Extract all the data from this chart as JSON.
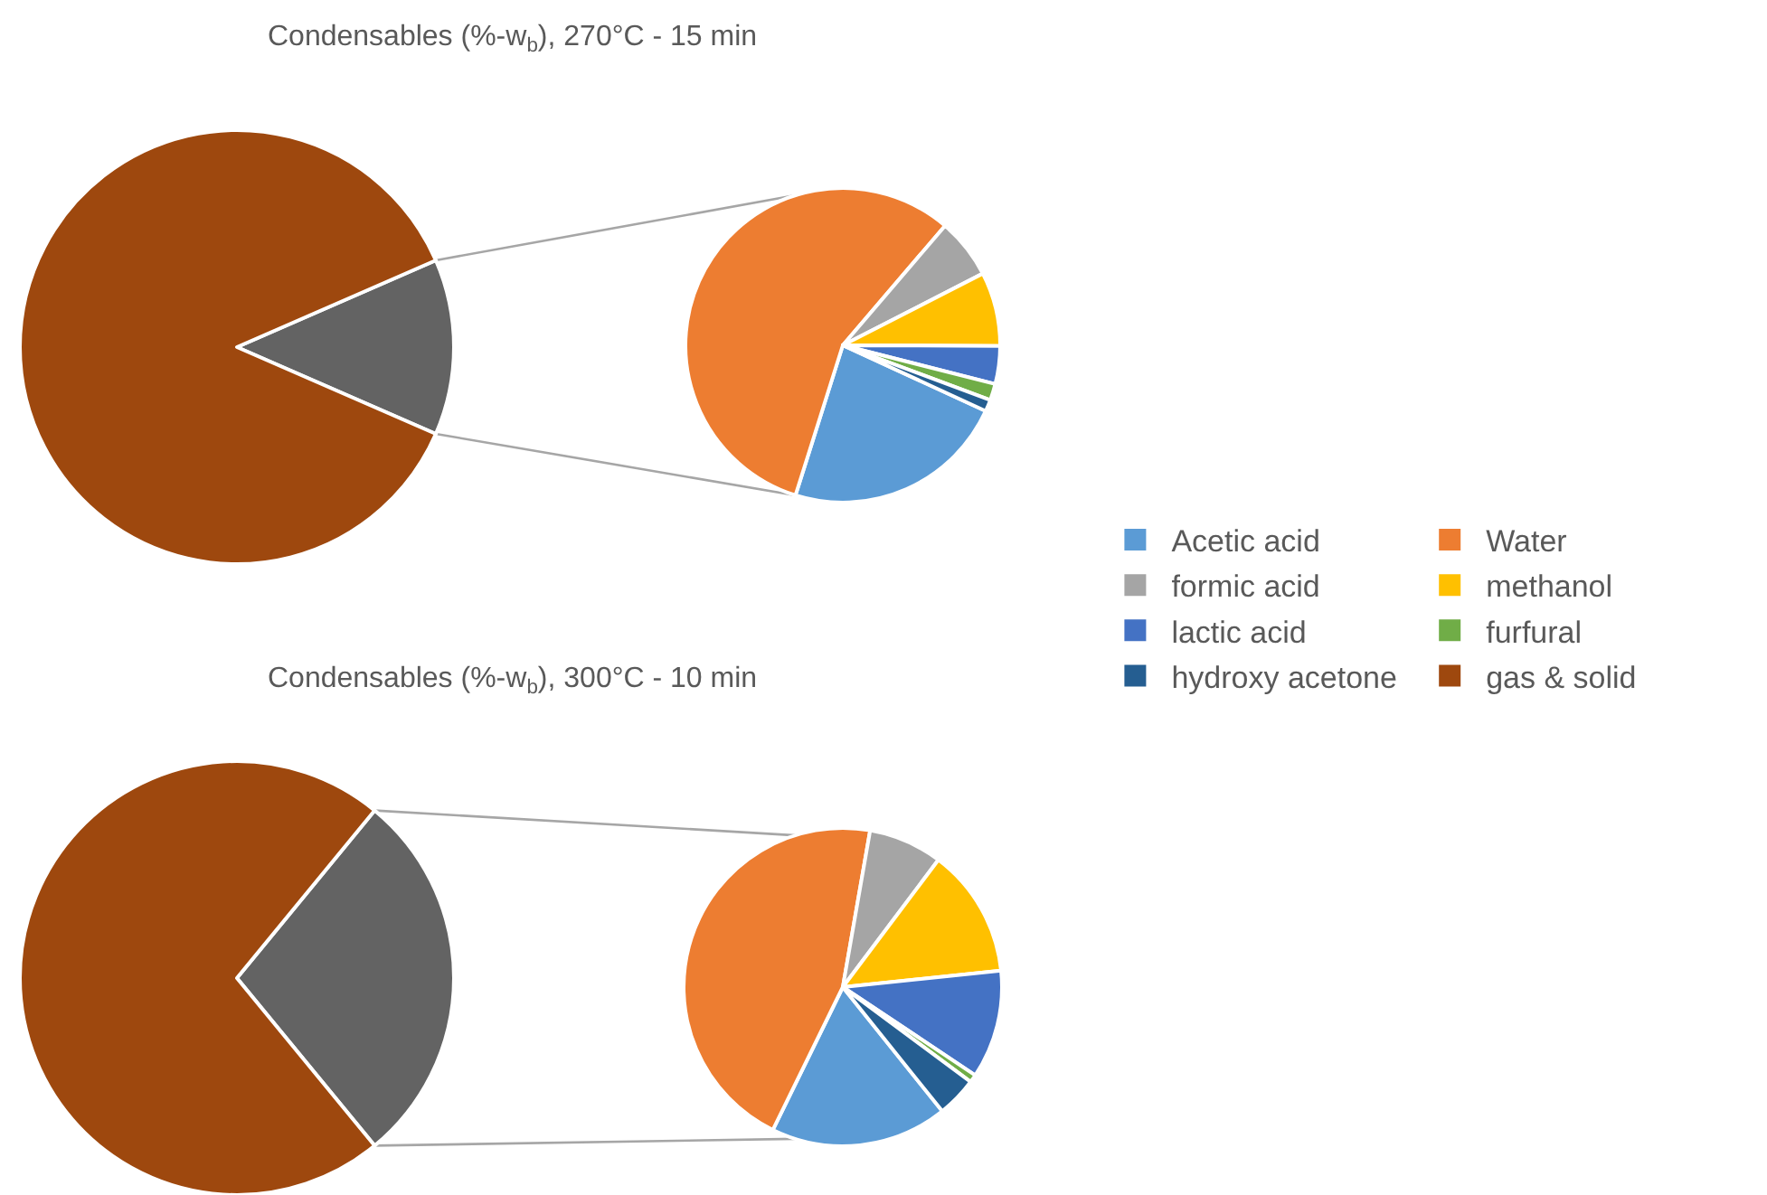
{
  "chart_data": [
    {
      "type": "pie",
      "title": "Condensables (%-w$_{b}$), 270°C - 15 min",
      "categories": [
        null,
        "gas & solid"
      ],
      "values": [
        13.1,
        86.9
      ],
      "colors": [
        "#636363",
        "#9e480e"
      ],
      "legend": "right"
    },
    {
      "type": "pie",
      "categories": [
        "Acetic acid",
        "Water",
        "formic acid",
        "methanol",
        "lactic acid",
        "furfural",
        "hydroxy acetone"
      ],
      "values": [
        23.0,
        56.4,
        6.2,
        7.6,
        3.9,
        1.7,
        1.2
      ],
      "colors": [
        "#5b9bd5",
        "#ed7d31",
        "#a5a5a5",
        "#ffc000",
        "#4472c4",
        "#70ad47",
        "#255e91"
      ],
      "legend": "right"
    },
    {
      "type": "pie",
      "title": "Condensables (%-w$_{b}$), 300°C - 10 min",
      "categories": [
        null,
        null
      ],
      "values": [
        28.1,
        71.9
      ],
      "colors": [
        "#636363",
        "#9e480e"
      ]
    },
    {
      "type": "pie",
      "categories": [
        null,
        null,
        null,
        null,
        null,
        null,
        null
      ],
      "values": [
        18.0,
        45.5,
        7.5,
        13.1,
        11.0,
        0.8,
        4.1
      ],
      "colors": [
        "#5b9bd5",
        "#ed7d31",
        "#a5a5a5",
        "#ffc000",
        "#4472c4",
        "#70ad47",
        "#255e91"
      ]
    }
  ]
}
